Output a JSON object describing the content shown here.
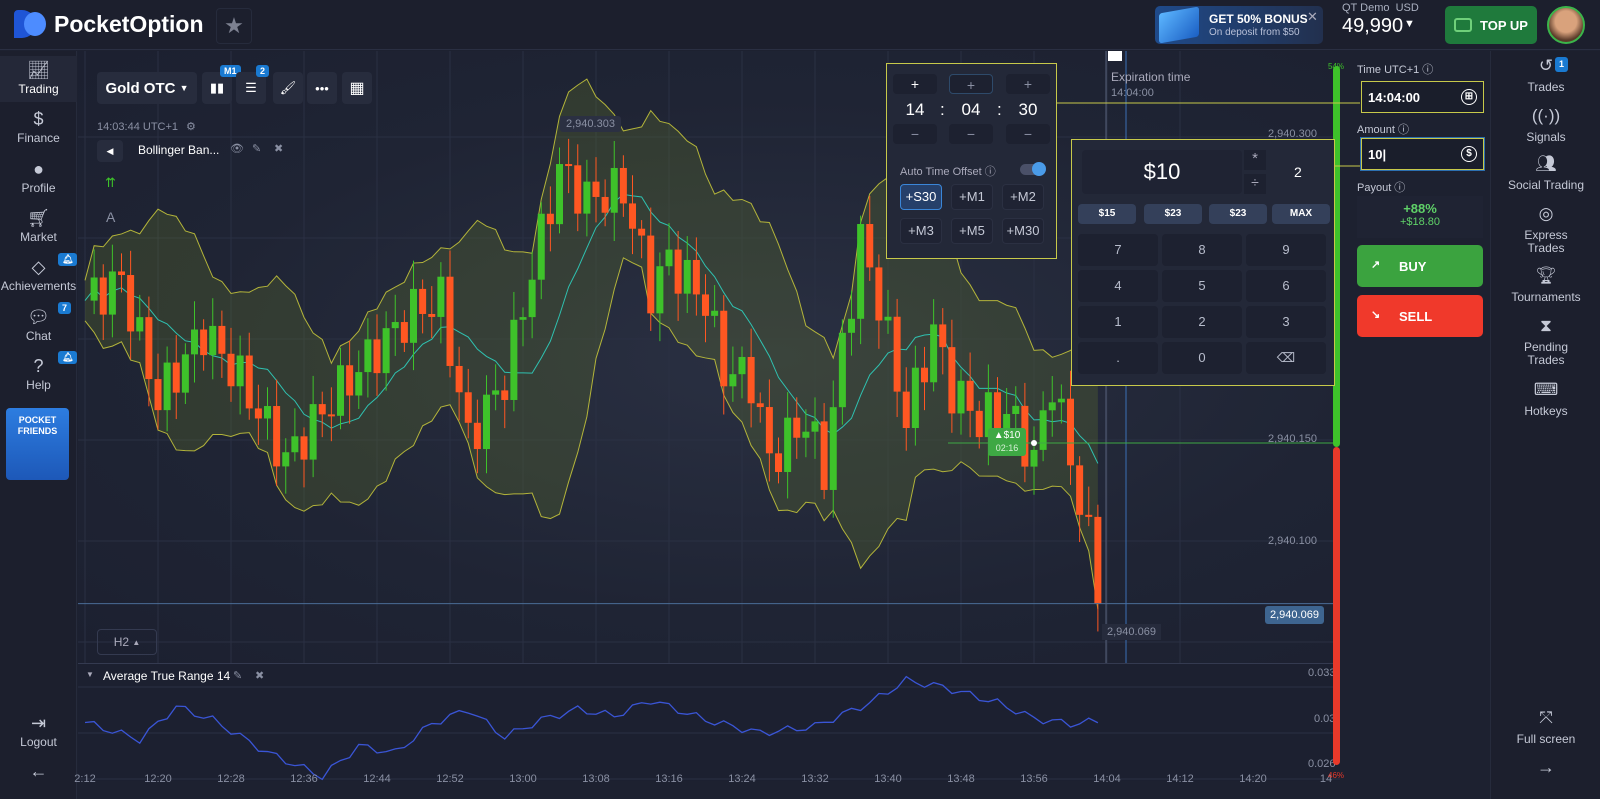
{
  "header": {
    "brand": "PocketOption",
    "bonus": {
      "title": "GET 50% BONUS",
      "subtitle": "On deposit from $50"
    },
    "account": {
      "label": "QT Demo",
      "currency": "USD",
      "balance": "49,990"
    },
    "topup": "TOP UP"
  },
  "sidebar": {
    "items": [
      {
        "label": "Trading",
        "icon": "chart-line-icon"
      },
      {
        "label": "Finance",
        "icon": "dollar-icon"
      },
      {
        "label": "Profile",
        "icon": "user-icon"
      },
      {
        "label": "Market",
        "icon": "cart-icon"
      },
      {
        "label": "Achievements",
        "icon": "diamond-icon"
      },
      {
        "label": "Chat",
        "icon": "chat-icon",
        "badge": "7"
      },
      {
        "label": "Help",
        "icon": "help-icon"
      }
    ],
    "promo": "POCKET FRIENDS",
    "logout": "Logout"
  },
  "toolbar": {
    "asset": "Gold OTC",
    "timeframe_badge": "M1",
    "indicators_badge": "2",
    "server_time": "14:03:44 UTC+1",
    "indicator": "Bollinger Ban...",
    "period": "H2"
  },
  "chart": {
    "high_label": "2,940.303",
    "current_price": "2,940.069",
    "low_label": "2,940.069",
    "price_ticks": [
      "2,940.300",
      "2,940.150",
      "2,940.100"
    ],
    "expiration_label": "Expiration time",
    "expiration_time": "14:04:00",
    "trade_marker": {
      "amount": "$10",
      "time": "02:16"
    },
    "sentiment_up": "54%",
    "sentiment_down": "46%",
    "colors": {
      "up": "#3ec22a",
      "down": "#ff5722",
      "band": "#b3b43a",
      "mid": "#2fc1b0",
      "atr": "#3a55d6"
    }
  },
  "chart_data": {
    "type": "candlestick",
    "x_ticks": [
      "2:12",
      "12:20",
      "12:28",
      "12:36",
      "12:44",
      "12:52",
      "13:00",
      "13:08",
      "13:16",
      "13:24",
      "13:32",
      "13:40",
      "13:48",
      "13:56",
      "14:04",
      "14:12",
      "14:20",
      "14"
    ],
    "price_path": {
      "times": [
        "12:12",
        "12:16",
        "12:20",
        "12:25",
        "12:29",
        "12:34",
        "12:39",
        "12:43",
        "12:48",
        "12:51",
        "12:54",
        "12:58",
        "13:01",
        "13:04",
        "13:07",
        "13:11",
        "13:14",
        "13:16",
        "13:20",
        "13:22",
        "13:25",
        "13:27",
        "13:31",
        "13:33",
        "13:35",
        "13:37",
        "13:39",
        "13:42",
        "13:45",
        "13:47",
        "13:50",
        "13:53",
        "13:56",
        "13:58",
        "14:00",
        "14:02",
        "14:03"
      ],
      "close": [
        2940.219,
        2940.229,
        2940.17,
        2940.204,
        2940.18,
        2940.14,
        2940.17,
        2940.19,
        2940.214,
        2940.219,
        2940.15,
        2940.18,
        2940.234,
        2940.284,
        2940.269,
        2940.274,
        2940.224,
        2940.239,
        2940.219,
        2940.185,
        2940.18,
        2940.14,
        2940.16,
        2940.135,
        2940.195,
        2940.249,
        2940.219,
        2940.16,
        2940.204,
        2940.175,
        2940.16,
        2940.165,
        2940.14,
        2940.18,
        2940.14,
        2940.1,
        2940.069
      ]
    },
    "atr": {
      "title": "Average True Range 14",
      "ticks": [
        "0.033",
        "0.03",
        "0.026"
      ],
      "times": [
        "12:12",
        "12:18",
        "12:22",
        "12:26",
        "12:32",
        "12:38",
        "12:42",
        "12:46",
        "12:50",
        "12:54",
        "12:58",
        "13:02",
        "13:06",
        "13:10",
        "13:14",
        "13:20",
        "13:26",
        "13:32",
        "13:38",
        "13:42",
        "13:46",
        "13:52",
        "13:56",
        "14:00",
        "14:03"
      ],
      "values": [
        0.0303,
        0.029,
        0.0315,
        0.0305,
        0.028,
        0.0262,
        0.0285,
        0.028,
        0.0302,
        0.0313,
        0.0292,
        0.0305,
        0.0313,
        0.0308,
        0.032,
        0.0305,
        0.0295,
        0.03,
        0.0318,
        0.0335,
        0.033,
        0.0318,
        0.0306,
        0.0302,
        0.0304
      ]
    }
  },
  "time_picker": {
    "hours": "14",
    "minutes": "04",
    "seconds": "30",
    "auto_offset": "Auto Time Offset",
    "auto_offset_on": true,
    "offsets": [
      "+S30",
      "+M1",
      "+M2",
      "+M3",
      "+M5",
      "+M30"
    ],
    "selected": "+S30"
  },
  "keypad": {
    "display": "$10",
    "multiplier": "2",
    "quick": [
      "$15",
      "$23",
      "$23",
      "MAX"
    ],
    "keys": [
      "7",
      "8",
      "9",
      "4",
      "5",
      "6",
      "1",
      "2",
      "3",
      ".",
      "0"
    ]
  },
  "panel": {
    "time_label": "Time UTC+1",
    "time_value": "14:04:00",
    "amount_label": "Amount",
    "amount_value": "10",
    "payout_label": "Payout",
    "payout_pct": "+88%",
    "payout_value": "+$18.80",
    "buy": "BUY",
    "sell": "SELL"
  },
  "rightbar": {
    "items": [
      {
        "label": "Trades",
        "badge": "1"
      },
      {
        "label": "Signals"
      },
      {
        "label": "Social Trading"
      },
      {
        "label": "Express Trades"
      },
      {
        "label": "Tournaments"
      },
      {
        "label": "Pending Trades"
      },
      {
        "label": "Hotkeys"
      }
    ],
    "fullscreen": "Full screen"
  }
}
